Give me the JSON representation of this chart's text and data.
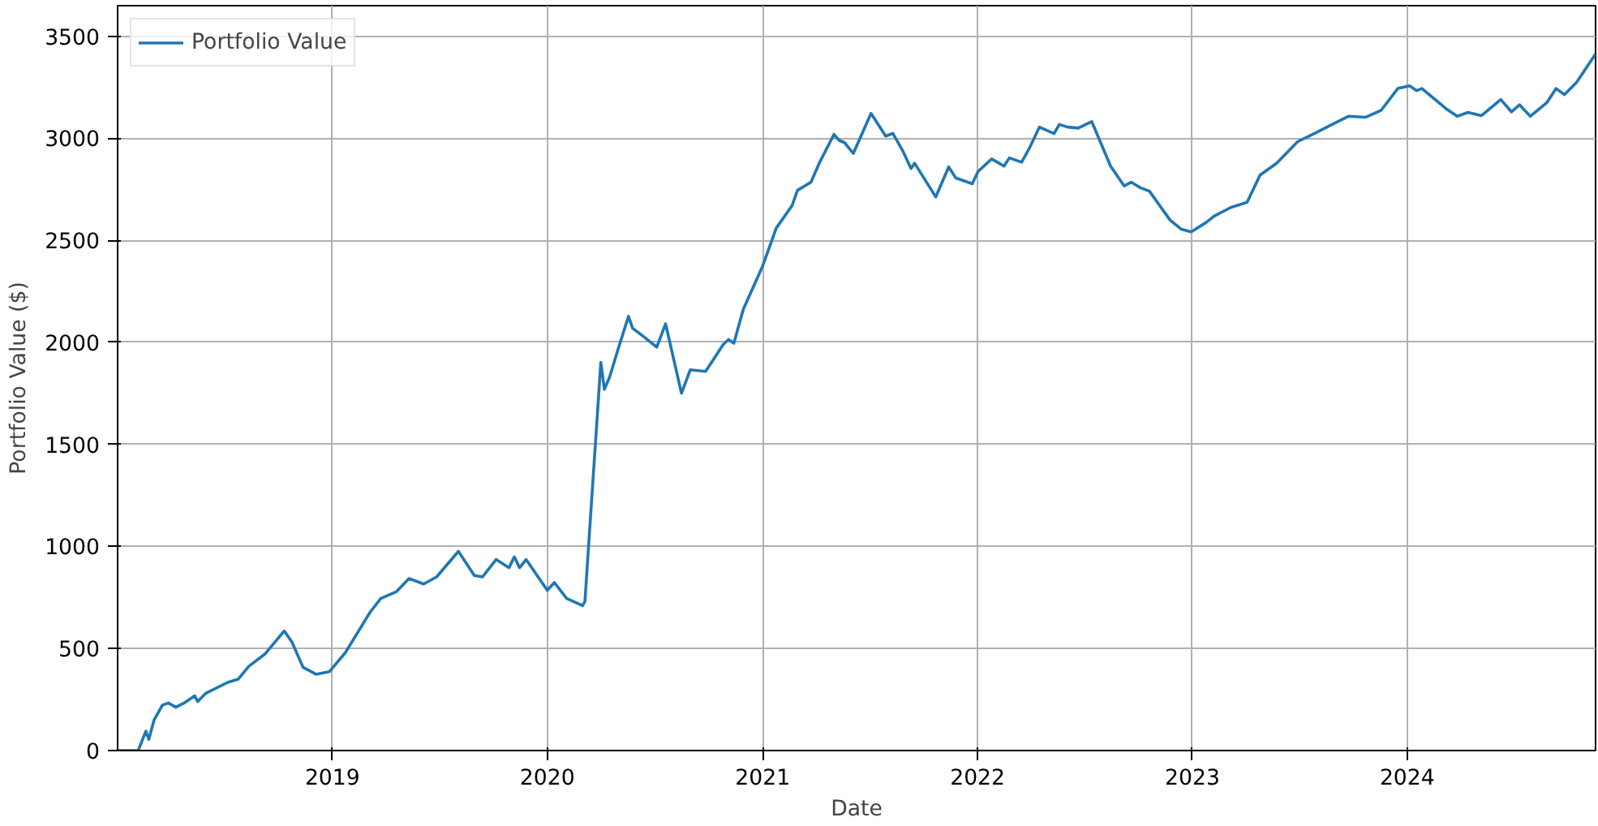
{
  "chart_data": {
    "type": "line",
    "xlabel": "Date",
    "ylabel": "Portfolio Value ($)",
    "x": [
      "2018-01-01",
      "2018-02-05",
      "2018-02-18",
      "2018-02-23",
      "2018-03-04",
      "2018-03-18",
      "2018-03-28",
      "2018-04-10",
      "2018-04-24",
      "2018-05-12",
      "2018-05-17",
      "2018-05-31",
      "2018-07-07",
      "2018-07-25",
      "2018-08-12",
      "2018-09-08",
      "2018-10-11",
      "2018-10-24",
      "2018-11-12",
      "2018-12-04",
      "2018-12-27",
      "2019-01-23",
      "2019-03-06",
      "2019-03-24",
      "2019-04-20",
      "2019-05-11",
      "2019-06-05",
      "2019-06-27",
      "2019-08-03",
      "2019-08-30",
      "2019-09-13",
      "2019-10-06",
      "2019-10-28",
      "2019-11-06",
      "2019-11-15",
      "2019-11-26",
      "2020-01-01",
      "2020-01-13",
      "2020-02-03",
      "2020-03-01",
      "2020-03-05",
      "2020-03-11",
      "2020-04-01",
      "2020-04-07",
      "2020-04-16",
      "2020-04-30",
      "2020-05-18",
      "2020-05-25",
      "2020-06-06",
      "2020-07-05",
      "2020-07-20",
      "2020-08-16",
      "2020-08-31",
      "2020-09-26",
      "2020-10-26",
      "2020-11-04",
      "2020-11-13",
      "2020-11-29",
      "2021-01-01",
      "2021-01-24",
      "2021-02-20",
      "2021-03-01",
      "2021-03-24",
      "2021-04-07",
      "2021-05-02",
      "2021-05-11",
      "2021-05-20",
      "2021-06-04",
      "2021-07-04",
      "2021-07-29",
      "2021-08-10",
      "2021-08-26",
      "2021-09-10",
      "2021-09-16",
      "2021-10-22",
      "2021-11-13",
      "2021-11-25",
      "2021-12-23",
      "2022-01-02",
      "2022-01-25",
      "2022-02-15",
      "2022-02-24",
      "2022-03-17",
      "2022-03-31",
      "2022-04-16",
      "2022-05-11",
      "2022-05-20",
      "2022-06-03",
      "2022-06-21",
      "2022-07-14",
      "2022-07-20",
      "2022-08-15",
      "2022-09-07",
      "2022-09-19",
      "2022-10-04",
      "2022-10-20",
      "2022-11-24",
      "2022-12-13",
      "2022-12-30",
      "2023-01-24",
      "2023-02-07",
      "2023-03-07",
      "2023-04-04",
      "2023-04-26",
      "2023-05-24",
      "2023-06-29",
      "2023-07-27",
      "2023-08-23",
      "2023-09-23",
      "2023-10-22",
      "2023-11-18",
      "2023-12-16",
      "2024-01-05",
      "2024-01-17",
      "2024-01-26",
      "2024-03-08",
      "2024-03-26",
      "2024-04-13",
      "2024-05-06",
      "2024-06-08",
      "2024-06-26",
      "2024-07-10",
      "2024-07-28",
      "2024-08-25",
      "2024-09-10",
      "2024-09-24",
      "2024-10-15",
      "2024-11-16"
    ],
    "series": [
      {
        "name": "Portfolio Value",
        "color": "#1f77b4",
        "values": [
          0,
          0,
          95,
          55,
          150,
          222,
          233,
          212,
          233,
          268,
          240,
          281,
          334,
          350,
          413,
          472,
          586,
          533,
          408,
          374,
          387,
          480,
          678,
          745,
          779,
          843,
          816,
          851,
          976,
          858,
          851,
          936,
          896,
          949,
          896,
          936,
          785,
          823,
          745,
          710,
          731,
          996,
          1902,
          1770,
          1831,
          1964,
          2128,
          2069,
          2043,
          1977,
          2091,
          1751,
          1866,
          1858,
          1990,
          2014,
          1996,
          2162,
          2375,
          2560,
          2671,
          2745,
          2785,
          2878,
          3019,
          2990,
          2979,
          2926,
          3122,
          3011,
          3024,
          2944,
          2852,
          2878,
          2713,
          2860,
          2806,
          2777,
          2838,
          2899,
          2864,
          2904,
          2883,
          2957,
          3055,
          3023,
          3068,
          3055,
          3050,
          3082,
          3042,
          2864,
          2767,
          2785,
          2759,
          2741,
          2600,
          2555,
          2542,
          2587,
          2619,
          2661,
          2687,
          2820,
          2878,
          2984,
          3023,
          3063,
          3108,
          3103,
          3138,
          3244,
          3257,
          3234,
          3244,
          3143,
          3108,
          3127,
          3111,
          3190,
          3130,
          3164,
          3108,
          3174,
          3244,
          3214,
          3275,
          3413
        ]
      }
    ],
    "xlim": [
      "2018-01-01",
      "2024-11-16"
    ],
    "xticks": [
      {
        "value": "2019",
        "label": "2019"
      },
      {
        "value": "2020",
        "label": "2020"
      },
      {
        "value": "2021",
        "label": "2021"
      },
      {
        "value": "2022",
        "label": "2022"
      },
      {
        "value": "2023",
        "label": "2023"
      },
      {
        "value": "2024",
        "label": "2024"
      }
    ],
    "ylim": [
      0,
      3650
    ],
    "yticks": [
      0,
      500,
      1000,
      1500,
      2000,
      2500,
      3000,
      3500
    ],
    "grid": true,
    "legend": "top left",
    "line_style": "solid"
  }
}
